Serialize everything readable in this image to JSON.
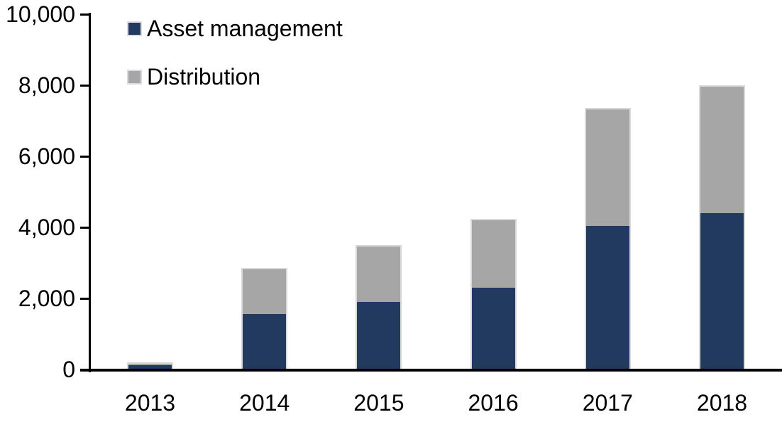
{
  "chart_data": {
    "type": "bar",
    "stacked": true,
    "categories": [
      "2013",
      "2014",
      "2015",
      "2016",
      "2017",
      "2018"
    ],
    "series": [
      {
        "name": "Asset management",
        "color": "#223A60",
        "values": [
          120,
          1560,
          1900,
          2310,
          4040,
          4400
        ]
      },
      {
        "name": "Distribution",
        "color": "#A6A6A6",
        "values": [
          90,
          1300,
          1600,
          1940,
          3320,
          3600
        ]
      }
    ],
    "totals": [
      210,
      2860,
      3500,
      4250,
      7360,
      8000
    ],
    "ylim": [
      0,
      10000
    ],
    "yticks": [
      0,
      2000,
      4000,
      6000,
      8000,
      10000
    ],
    "ytick_labels": [
      "0",
      "2,000",
      "4,000",
      "6,000",
      "8,000",
      "10,000"
    ],
    "grid": false,
    "legend_position": "top-left",
    "axis_color": "#000000",
    "text_color": "#000000",
    "bar_border_color": "#D9D9D9"
  }
}
